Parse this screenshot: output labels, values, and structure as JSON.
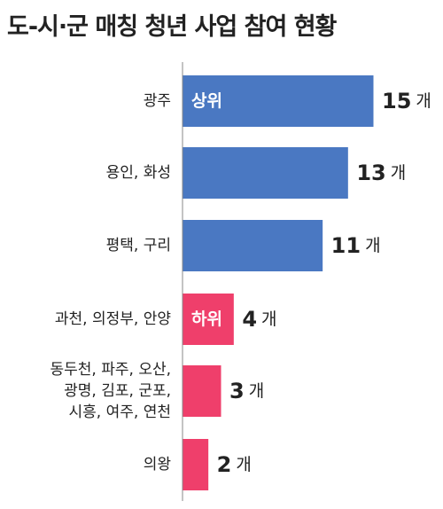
{
  "title": "도-시·군 매칭 청년 사업 참여 현황",
  "chart_data": {
    "type": "bar",
    "orientation": "horizontal",
    "title": "도-시·군 매칭 청년 사업 참여 현황",
    "categories": [
      [
        "광주"
      ],
      [
        "용인, 화성"
      ],
      [
        "평택, 구리"
      ],
      [
        "과천, 의정부, 안양"
      ],
      [
        "동두천, 파주, 오산,",
        "광명, 김포, 군포,",
        "시흥, 여주, 연천"
      ],
      [
        "의왕"
      ]
    ],
    "values": [
      15,
      13,
      11,
      4,
      3,
      2
    ],
    "unit": "개",
    "groups": [
      {
        "label": "상위",
        "color": "#4a78c2",
        "bars": [
          0,
          1,
          2
        ]
      },
      {
        "label": "하위",
        "color": "#ef3f6b",
        "bars": [
          3,
          4,
          5
        ]
      }
    ],
    "xlim": [
      0,
      15
    ],
    "grid": false,
    "legend": "none"
  }
}
